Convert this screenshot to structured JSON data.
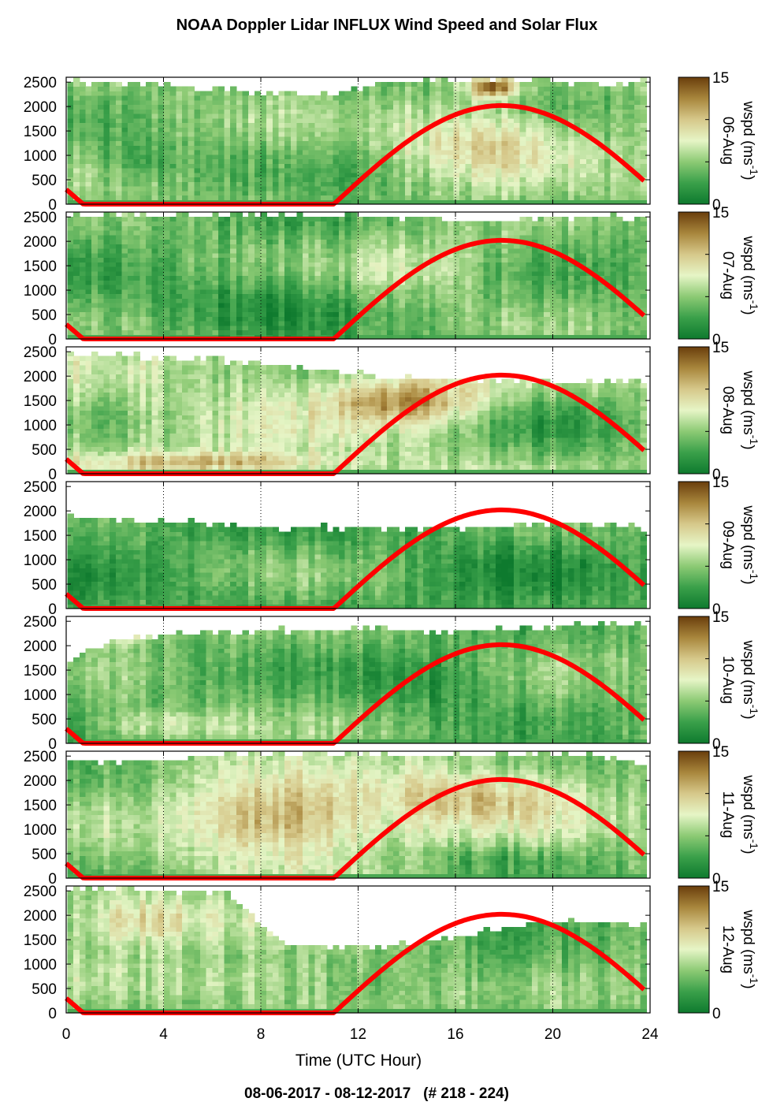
{
  "figure": {
    "title": "NOAA Doppler Lidar INFLUX Wind Speed and Solar Flux",
    "xlabel": "Time (UTC Hour)",
    "footer": "08-06-2017 - 08-12-2017   (# 218 - 224)",
    "colorbar_label": "wspd (ms",
    "colorbar_label_sup": "-1",
    "colormap": [
      "#0e7a2e",
      "#3aa04a",
      "#8cca74",
      "#e6f5c6",
      "#d6c88a",
      "#a8863c",
      "#6a3e0c"
    ],
    "solar_color": "#ff0000",
    "missing_color": "#ffffff"
  },
  "chart_data": {
    "type": "heatmap",
    "x": {
      "label": "Time (UTC Hour)",
      "lim": [
        0,
        24
      ],
      "ticks": [
        0,
        4,
        8,
        12,
        16,
        20,
        24
      ],
      "tick_labels": [
        "0",
        "4",
        "8",
        "12",
        "16",
        "20",
        "24"
      ],
      "grid": "dotted vertical at 4, 8, 12, 16, 20, 24"
    },
    "y": {
      "lim": [
        0,
        2600
      ],
      "ticks": [
        0,
        500,
        1000,
        1500,
        2000,
        2500
      ],
      "tick_labels": [
        "0",
        "500",
        "1000",
        "1500",
        "2000",
        "2500"
      ]
    },
    "colorbar": {
      "lim": [
        0,
        15
      ],
      "ticks": [
        0,
        5,
        10,
        15
      ],
      "tick_labels": [
        "0",
        "",
        "",
        "15"
      ],
      "label": "wspd (ms-1)"
    },
    "solar_flux_curve": {
      "color": "red",
      "night_zero_from": 0.7,
      "sunrise": 11.0,
      "peak_hour": 17.9,
      "peak_height": 2020,
      "sunset": 24.8,
      "start_value_at_0": 300
    },
    "panels": [
      {
        "date_label": "06-Aug",
        "seed": 11,
        "base": 4.5,
        "top": [
          2480,
          2430,
          2380,
          2300,
          2250,
          2200,
          2480,
          2500,
          2500,
          2500,
          2400,
          2500
        ],
        "features": [
          [
            3,
            900,
            2.5,
            500,
            -2.0
          ],
          [
            17.5,
            1300,
            4.0,
            700,
            5.0
          ],
          [
            17.5,
            2400,
            1.0,
            200,
            9.0
          ]
        ]
      },
      {
        "date_label": "07-Aug",
        "seed": 23,
        "base": 4.0,
        "top": [
          2480,
          2500,
          2500,
          2500,
          2500,
          2480,
          2460,
          2420,
          2380,
          2420,
          2480,
          2440
        ],
        "features": [
          [
            8,
            800,
            4.0,
            600,
            -2.5
          ],
          [
            15,
            1500,
            3.0,
            700,
            3.0
          ]
        ]
      },
      {
        "date_label": "08-Aug",
        "seed": 37,
        "base": 6.0,
        "top": [
          2420,
          2380,
          2340,
          2280,
          2150,
          2050,
          1950,
          1880,
          1850,
          1850,
          1850,
          1850
        ],
        "features": [
          [
            6,
            250,
            5.0,
            200,
            5.0
          ],
          [
            14,
            1500,
            3.0,
            450,
            6.5
          ],
          [
            20,
            900,
            4.0,
            900,
            -2.5
          ]
        ]
      },
      {
        "date_label": "09-Aug",
        "seed": 41,
        "base": 3.0,
        "top": [
          1800,
          1800,
          1750,
          1650,
          1600,
          1620,
          1620,
          1620,
          1640,
          1700,
          1680,
          1600
        ],
        "features": [
          [
            8,
            1000,
            4.0,
            500,
            1.0
          ],
          [
            19,
            900,
            3.0,
            700,
            -1.0
          ]
        ]
      },
      {
        "date_label": "10-Aug",
        "seed": 53,
        "base": 4.0,
        "top": [
          1700,
          2100,
          2200,
          2250,
          2280,
          2300,
          2320,
          2250,
          2300,
          2350,
          2400,
          2400
        ],
        "features": [
          [
            15,
            1300,
            3.0,
            700,
            -2.5
          ],
          [
            2,
            2300,
            1.5,
            200,
            8.0
          ],
          [
            4,
            400,
            3.0,
            300,
            3.0
          ]
        ]
      },
      {
        "date_label": "11-Aug",
        "seed": 67,
        "base": 5.0,
        "top": [
          2350,
          2350,
          2400,
          2500,
          2500,
          2500,
          2500,
          2500,
          2480,
          2500,
          2480,
          2200
        ],
        "features": [
          [
            9,
            1200,
            4.0,
            800,
            7.0
          ],
          [
            17,
            1700,
            4.0,
            600,
            5.0
          ],
          [
            18,
            400,
            4.0,
            300,
            -2.0
          ]
        ]
      },
      {
        "date_label": "12-Aug",
        "seed": 79,
        "base": 5.0,
        "top": [
          2500,
          2500,
          2450,
          2400,
          1400,
          1300,
          1350,
          1450,
          1700,
          1800,
          1850,
          1750
        ],
        "features": [
          [
            3,
            1900,
            3.0,
            500,
            5.0
          ],
          [
            19,
            1100,
            4.0,
            700,
            -2.0
          ],
          [
            8,
            700,
            4.0,
            400,
            2.0
          ]
        ]
      }
    ]
  }
}
